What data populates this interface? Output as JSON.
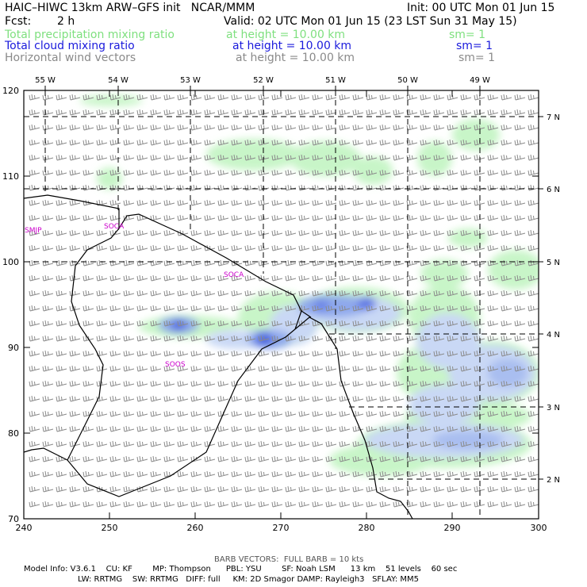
{
  "header": {
    "title": "HAIC–HIWC 13km ARW–GFS init   NCAR/MMM",
    "init": "Init: 00 UTC Mon 01 Jun 15",
    "fcst_label": "Fcst:",
    "fcst_value": "2 h",
    "valid": "Valid: 02 UTC Mon 01 Jun 15 (23 LST Sun 31 May 15)",
    "fields": [
      {
        "name": "Total precipitation mixing ratio",
        "height": "at height = 10.00 km",
        "sm": "sm= 1",
        "color": "#7fe07f"
      },
      {
        "name": "Total cloud mixing ratio",
        "height": "at height = 10.00 km",
        "sm": "sm= 1",
        "color": "#1a1adc"
      },
      {
        "name": "Horizontal wind vectors",
        "height": "at height = 10.00 km",
        "sm": "sm= 1",
        "color": "#8a8a8a"
      }
    ]
  },
  "map": {
    "x_ticks": [
      "240",
      "250",
      "260",
      "270",
      "280",
      "290",
      "300"
    ],
    "y_ticks": [
      "70",
      "80",
      "90",
      "100",
      "110",
      "120"
    ],
    "lon_labels": [
      "55 W",
      "54 W",
      "53 W",
      "52 W",
      "51 W",
      "50 W",
      "49 W"
    ],
    "lat_labels": [
      "2 N",
      "3 N",
      "4 N",
      "5 N",
      "6 N",
      "7 N"
    ],
    "stations": [
      "SMJP",
      "SOCA",
      "SOCA",
      "SOOS"
    ],
    "colors": {
      "precip": "#c8f5c8",
      "cloud_light": "#c9d8f5",
      "cloud_mid": "#8ea8ec",
      "cloud_dark": "#4a64e0",
      "barb": "#8a8a8a",
      "station": "#cc00cc"
    }
  },
  "footer": {
    "barb_note": "BARB VECTORS:  FULL BARB = 10 kts",
    "line1": "Model Info: V3.6.1    CU: KF        MP: Thompson      PBL: YSU        SF: Noah LSM      13 km    51 levels    60 sec",
    "line2": "LW: RRTMG    SW: RRTMG   DIFF: full     KM: 2D Smagor DAMP: Rayleigh3   SFLAY: MM5"
  }
}
